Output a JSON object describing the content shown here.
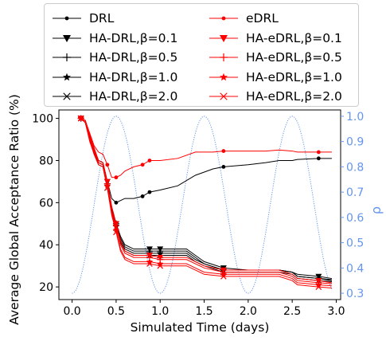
{
  "chart_data": {
    "type": "line",
    "xlabel": "Simulated Time (days)",
    "ylabel": "Average Global Acceptance Ratio (%)",
    "y2label": "ρ",
    "xlim": [
      -0.15,
      3.05
    ],
    "ylim": [
      14,
      104
    ],
    "y2lim": [
      0.275,
      1.025
    ],
    "xticks": [
      0.0,
      0.5,
      1.0,
      1.5,
      2.0,
      2.5,
      3.0
    ],
    "yticks": [
      20,
      40,
      60,
      80,
      100
    ],
    "y2ticks": [
      0.3,
      0.4,
      0.5,
      0.6,
      0.7,
      0.8,
      0.9,
      1.0
    ],
    "y2_color": "#6495ED",
    "legend_position": "top",
    "series": [
      {
        "name": "DRL",
        "color": "#000000",
        "marker": "dot",
        "x": [
          0.1,
          0.15,
          0.2,
          0.25,
          0.3,
          0.35,
          0.4,
          0.45,
          0.5,
          0.55,
          0.6,
          0.7,
          0.8,
          0.88,
          1.0,
          1.2,
          1.4,
          1.6,
          1.72,
          2.0,
          2.2,
          2.35,
          2.5,
          2.56,
          2.8,
          2.95
        ],
        "y": [
          100,
          99,
          92,
          85,
          80,
          79,
          70,
          62,
          60,
          61,
          62,
          62,
          63,
          65,
          66,
          68,
          73,
          76,
          77,
          78,
          79,
          80,
          80,
          80.5,
          81,
          81
        ]
      },
      {
        "name": "HA-DRL,β=0.1",
        "color": "#000000",
        "marker": "triangle-down",
        "x": [
          0.1,
          0.15,
          0.2,
          0.25,
          0.3,
          0.35,
          0.4,
          0.45,
          0.5,
          0.55,
          0.6,
          0.7,
          0.88,
          1.0,
          1.2,
          1.3,
          1.4,
          1.5,
          1.72,
          2.0,
          2.2,
          2.35,
          2.5,
          2.56,
          2.8,
          2.95
        ],
        "y": [
          100,
          99,
          92,
          85,
          80,
          79,
          70,
          58,
          50,
          44,
          40,
          38,
          38,
          38,
          38,
          38,
          35,
          32,
          29,
          28,
          28,
          28,
          27,
          26,
          25,
          24
        ]
      },
      {
        "name": "HA-DRL,β=0.5",
        "color": "#000000",
        "marker": "plus",
        "x": [
          0.1,
          0.15,
          0.2,
          0.25,
          0.3,
          0.35,
          0.4,
          0.45,
          0.5,
          0.55,
          0.6,
          0.7,
          0.88,
          1.0,
          1.2,
          1.3,
          1.4,
          1.5,
          1.72,
          2.0,
          2.2,
          2.35,
          2.5,
          2.56,
          2.8,
          2.95
        ],
        "y": [
          100,
          99,
          91,
          84,
          79,
          78,
          69,
          57,
          50,
          43,
          39,
          37,
          37,
          37,
          37,
          37,
          34,
          31,
          28,
          28,
          28,
          28,
          27,
          25,
          24,
          23.5
        ]
      },
      {
        "name": "HA-DRL,β=1.0",
        "color": "#000000",
        "marker": "star",
        "x": [
          0.1,
          0.15,
          0.2,
          0.25,
          0.3,
          0.35,
          0.4,
          0.45,
          0.5,
          0.55,
          0.6,
          0.7,
          0.88,
          1.0,
          1.2,
          1.3,
          1.4,
          1.5,
          1.72,
          2.0,
          2.2,
          2.35,
          2.5,
          2.56,
          2.8,
          2.95
        ],
        "y": [
          100,
          98,
          90,
          83,
          79,
          78,
          68,
          56,
          49,
          42,
          38,
          36,
          36,
          36,
          36,
          36,
          33,
          31,
          28,
          28,
          28,
          28,
          27,
          25,
          24,
          23
        ]
      },
      {
        "name": "HA-DRL,β=2.0",
        "color": "#000000",
        "marker": "x",
        "x": [
          0.1,
          0.15,
          0.2,
          0.25,
          0.3,
          0.35,
          0.4,
          0.45,
          0.5,
          0.55,
          0.6,
          0.7,
          0.88,
          1.0,
          1.2,
          1.3,
          1.4,
          1.5,
          1.72,
          2.0,
          2.2,
          2.35,
          2.5,
          2.56,
          2.8,
          2.95
        ],
        "y": [
          100,
          98,
          90,
          83,
          78,
          77,
          67,
          55,
          48,
          41,
          37,
          35,
          35,
          35,
          35,
          35,
          32,
          30,
          27,
          27,
          27,
          27,
          26,
          24,
          23,
          22.5
        ]
      },
      {
        "name": "eDRL",
        "color": "#FF0000",
        "marker": "dot",
        "x": [
          0.1,
          0.15,
          0.2,
          0.25,
          0.3,
          0.35,
          0.4,
          0.45,
          0.5,
          0.55,
          0.6,
          0.7,
          0.8,
          0.88,
          1.0,
          1.2,
          1.4,
          1.6,
          1.72,
          2.0,
          2.2,
          2.35,
          2.5,
          2.56,
          2.8,
          2.95
        ],
        "y": [
          100,
          99,
          93,
          87,
          84,
          83,
          78,
          72,
          72,
          73,
          75,
          77,
          78,
          80,
          80,
          81,
          84,
          84,
          84.5,
          84.5,
          84.5,
          85,
          84.5,
          84,
          84,
          84
        ]
      },
      {
        "name": "HA-eDRL,β=0.1",
        "color": "#FF0000",
        "marker": "triangle-down",
        "x": [
          0.1,
          0.15,
          0.2,
          0.25,
          0.3,
          0.35,
          0.4,
          0.45,
          0.5,
          0.55,
          0.6,
          0.7,
          0.88,
          1.0,
          1.2,
          1.3,
          1.4,
          1.5,
          1.72,
          2.0,
          2.2,
          2.35,
          2.5,
          2.56,
          2.8,
          2.95
        ],
        "y": [
          100,
          99,
          92,
          86,
          80,
          79,
          70,
          58,
          50,
          42,
          37,
          35,
          35,
          34,
          34,
          34,
          32,
          30,
          28,
          28,
          28,
          28,
          26,
          24,
          23,
          22
        ]
      },
      {
        "name": "HA-eDRL,β=0.5",
        "color": "#FF0000",
        "marker": "plus",
        "x": [
          0.1,
          0.15,
          0.2,
          0.25,
          0.3,
          0.35,
          0.4,
          0.45,
          0.5,
          0.55,
          0.6,
          0.7,
          0.88,
          1.0,
          1.2,
          1.3,
          1.4,
          1.5,
          1.72,
          2.0,
          2.2,
          2.35,
          2.5,
          2.56,
          2.8,
          2.95
        ],
        "y": [
          100,
          99,
          91,
          85,
          79,
          78,
          69,
          56,
          49,
          40,
          36,
          34,
          34,
          33,
          33,
          33,
          31,
          29,
          27,
          27,
          27,
          27,
          25,
          23,
          22,
          21.5
        ]
      },
      {
        "name": "HA-eDRL,β=1.0",
        "color": "#FF0000",
        "marker": "star",
        "x": [
          0.1,
          0.15,
          0.2,
          0.25,
          0.3,
          0.35,
          0.4,
          0.45,
          0.5,
          0.55,
          0.6,
          0.7,
          0.88,
          1.0,
          1.2,
          1.3,
          1.4,
          1.5,
          1.72,
          2.0,
          2.2,
          2.35,
          2.5,
          2.56,
          2.8,
          2.95
        ],
        "y": [
          100,
          98,
          90,
          84,
          79,
          78,
          68,
          55,
          47,
          38,
          34,
          32,
          32,
          31,
          31,
          31,
          29,
          27,
          26,
          26,
          26,
          26,
          24,
          22,
          21,
          20.5
        ]
      },
      {
        "name": "HA-eDRL,β=2.0",
        "color": "#FF0000",
        "marker": "x",
        "x": [
          0.1,
          0.15,
          0.2,
          0.25,
          0.3,
          0.35,
          0.4,
          0.45,
          0.5,
          0.55,
          0.6,
          0.7,
          0.88,
          1.0,
          1.2,
          1.3,
          1.4,
          1.5,
          1.72,
          2.0,
          2.2,
          2.35,
          2.5,
          2.56,
          2.8,
          2.95
        ],
        "y": [
          100,
          98,
          89,
          83,
          78,
          77,
          67,
          54,
          46,
          37,
          33,
          31,
          31,
          30,
          30,
          30,
          28,
          26,
          25,
          25,
          25,
          25,
          23,
          21,
          20,
          19.5
        ]
      }
    ],
    "rho": {
      "color": "#6495ED",
      "style": "dotted",
      "min": 0.3,
      "max": 1.0,
      "period_days": 1.0,
      "peak_days": [
        0.5,
        1.5,
        2.5
      ],
      "x_start": 0.0,
      "x_end": 2.95
    }
  }
}
